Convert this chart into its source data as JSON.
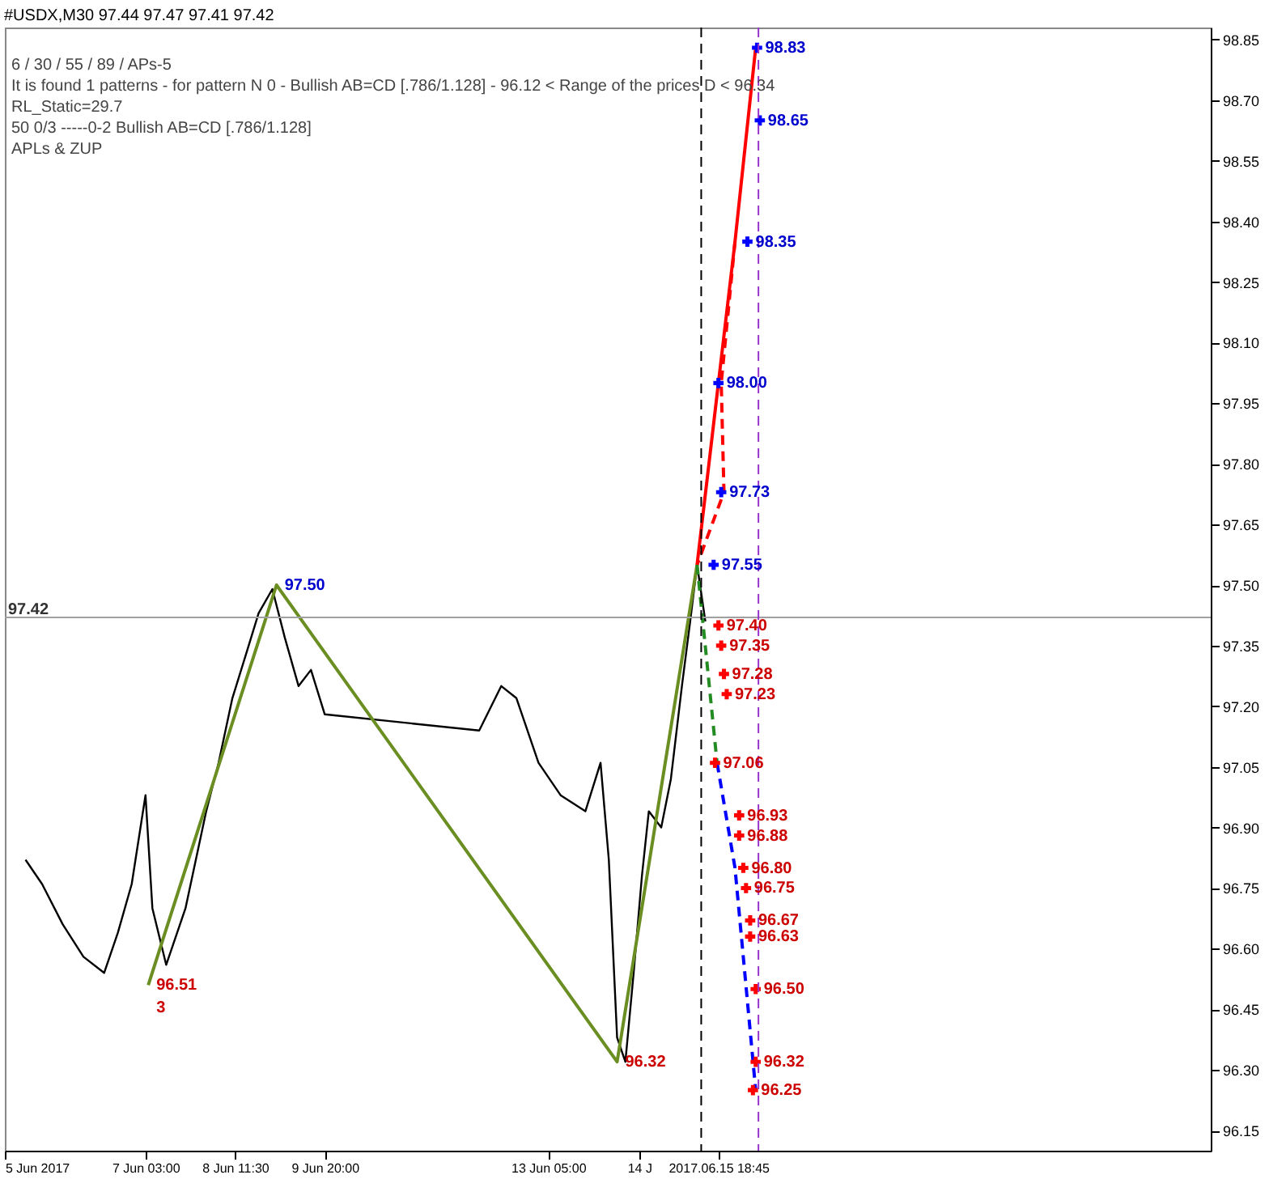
{
  "chart_data": {
    "type": "line",
    "title": "#USDX,M30  97.44 97.47 97.41 97.42",
    "xlim": [
      "2017-06-05T00:00",
      "2017-06-23T05:15"
    ],
    "ylim": [
      96.1,
      98.88
    ],
    "xticks": [
      {
        "value": "2017-06-05",
        "label": "5 Jun 2017"
      },
      {
        "value": "2017-06-07T03:00",
        "label": "7 Jun 03:00"
      },
      {
        "value": "2017-06-08T11:30",
        "label": "8 Jun 11:30"
      },
      {
        "value": "2017-06-09T20:00",
        "label": "9 Jun 20:00"
      },
      {
        "value": "2017-06-13T05:00",
        "label": "13 Jun 05:00"
      },
      {
        "value": "2017-06-14T14:00",
        "label": "14 J"
      },
      {
        "value": "2017-06-15T18:45",
        "label": "2017.06.15 18:45"
      }
    ],
    "yticks": [
      {
        "value": 98.85,
        "label": "98.85"
      },
      {
        "value": 98.7,
        "label": "98.70"
      },
      {
        "value": 98.55,
        "label": "98.55"
      },
      {
        "value": 98.4,
        "label": "98.40"
      },
      {
        "value": 98.25,
        "label": "98.25"
      },
      {
        "value": 98.1,
        "label": "98.10"
      },
      {
        "value": 97.95,
        "label": "97.95"
      },
      {
        "value": 97.8,
        "label": "97.80"
      },
      {
        "value": 97.65,
        "label": "97.65"
      },
      {
        "value": 97.5,
        "label": "97.50"
      },
      {
        "value": 97.35,
        "label": "97.35"
      },
      {
        "value": 97.2,
        "label": "97.20"
      },
      {
        "value": 97.05,
        "label": "97.05"
      },
      {
        "value": 96.9,
        "label": "96.90"
      },
      {
        "value": 96.75,
        "label": "96.75"
      },
      {
        "value": 96.6,
        "label": "96.60"
      },
      {
        "value": 96.45,
        "label": "96.45"
      },
      {
        "value": 96.3,
        "label": "96.30"
      },
      {
        "value": 96.15,
        "label": "96.15"
      }
    ],
    "grid": false,
    "series": [
      {
        "color": "#000000",
        "line_style": "solid",
        "x": [
          "2017-06-05T07:30",
          "2017-06-05T13:30",
          "2017-06-05T21:00",
          "2017-06-06T04:30",
          "2017-06-06T12:00",
          "2017-06-06T17:00",
          "2017-06-06T22:00",
          "2017-06-07T03:00",
          "2017-06-07T05:30",
          "2017-06-07T10:30",
          "2017-06-07T17:30",
          "2017-06-08T01:00",
          "2017-06-08T05:30",
          "2017-06-08T10:30",
          "2017-06-08T15:30",
          "2017-06-08T20:00",
          "2017-06-09T01:00",
          "2017-06-09T05:30",
          "2017-06-09T10:30",
          "2017-06-09T15:00",
          "2017-06-09T20:00",
          "2017-06-12T04:00",
          "2017-06-12T12:00",
          "2017-06-12T17:30",
          "2017-06-13T01:30",
          "2017-06-13T09:30",
          "2017-06-13T18:30",
          "2017-06-14T00:00",
          "2017-06-14T03:00",
          "2017-06-14T06:00",
          "2017-06-14T09:00",
          "2017-06-14T12:00",
          "2017-06-14T15:00",
          "2017-06-14T17:30",
          "2017-06-14T22:00",
          "2017-06-15T01:30",
          "2017-06-15T05:30",
          "2017-06-15T08:30",
          "2017-06-15T11:00",
          "2017-06-15T14:00"
        ],
        "values": [
          96.82,
          96.76,
          96.66,
          96.58,
          96.54,
          96.64,
          96.76,
          96.98,
          96.7,
          96.56,
          96.7,
          96.94,
          97.06,
          97.22,
          97.33,
          97.43,
          97.49,
          97.37,
          97.25,
          97.29,
          97.18,
          97.14,
          97.25,
          97.22,
          97.06,
          96.98,
          96.94,
          97.06,
          96.82,
          96.38,
          96.32,
          96.54,
          96.78,
          96.94,
          96.9,
          97.02,
          97.25,
          97.41,
          97.55,
          97.41
        ]
      },
      {
        "color": "#6b8e23",
        "line_style": "solid",
        "x": [
          "2017-06-07T04:00",
          "2017-06-09T02:30",
          "2017-06-14T06:00",
          "2017-06-15T11:00"
        ],
        "values": [
          96.51,
          97.5,
          96.32,
          97.55
        ]
      },
      {
        "color": "#ff0000",
        "line_style": "solid",
        "x": [
          "2017-06-15T11:00",
          "2017-06-16T00:45",
          "2017-06-16T08:15"
        ],
        "values": [
          97.55,
          98.35,
          98.83
        ]
      },
      {
        "color": "#ff0000",
        "line_style": "dashed",
        "x": [
          "2017-06-16T00:45",
          "2017-06-15T19:45",
          "2017-06-15T20:45",
          "2017-06-15T11:00"
        ],
        "values": [
          98.35,
          98.0,
          97.73,
          97.55
        ]
      },
      {
        "color": "#228b22",
        "line_style": "dashed",
        "x": [
          "2017-06-15T11:00",
          "2017-06-15T18:15"
        ],
        "values": [
          97.55,
          97.06
        ]
      },
      {
        "color": "#0000ff",
        "line_style": "dashed",
        "x": [
          "2017-06-15T18:15",
          "2017-06-16T00:45",
          "2017-06-16T08:15"
        ],
        "values": [
          97.06,
          96.8,
          96.25
        ]
      },
      {
        "type": "scatter",
        "color": "#0000ff",
        "x": [
          "2017-06-16T08:45",
          "2017-06-16T09:45",
          "2017-06-16T05:15",
          "2017-06-15T18:45",
          "2017-06-15T19:45",
          "2017-06-15T17:00"
        ],
        "values": [
          98.83,
          98.65,
          98.35,
          98.0,
          97.73,
          97.55
        ]
      },
      {
        "type": "scatter",
        "color": "#ff0000",
        "x": [
          "2017-06-15T18:45",
          "2017-06-15T19:45",
          "2017-06-15T20:45",
          "2017-06-15T21:45",
          "2017-06-15T17:30",
          "2017-06-16T02:15",
          "2017-06-16T02:15",
          "2017-06-16T03:45",
          "2017-06-16T04:45",
          "2017-06-16T06:15",
          "2017-06-16T06:15",
          "2017-06-16T08:15",
          "2017-06-16T08:15",
          "2017-06-16T07:15"
        ],
        "values": [
          97.4,
          97.35,
          97.28,
          97.23,
          97.06,
          96.93,
          96.88,
          96.8,
          96.75,
          96.67,
          96.63,
          96.5,
          96.32,
          96.25
        ]
      }
    ],
    "ref_lines": [
      {
        "axis": "y",
        "value": 97.42,
        "label": "97.42",
        "color": "#a0a0a0",
        "line_style": "solid"
      },
      {
        "axis": "x",
        "value": "2017-06-15T12:30",
        "color": "#000000",
        "line_style": "dashed"
      },
      {
        "axis": "x",
        "value": "2017-06-16T09:15",
        "color": "#9932cc",
        "line_style": "dashed"
      }
    ],
    "annotations": [
      "6 / 30 / 55 / 89 / APs-5",
      "It is found 1 patterns  -  for pattern N 0 - Bullish AB=CD [.786/1.128] - 96.12 < Range of the prices D < 96.34",
      "RL_Static=29.7",
      "50     0/3     -----0-2      Bullish AB=CD [.786/1.128]",
      "APLs & ZUP",
      {
        "text": "98.83",
        "x": "2017-06-16T08:45",
        "y": 98.83
      },
      {
        "text": "98.65",
        "x": "2017-06-16T09:45",
        "y": 98.65
      },
      {
        "text": "98.35",
        "x": "2017-06-16T05:15",
        "y": 98.35
      },
      {
        "text": "98.00",
        "x": "2017-06-15T18:45",
        "y": 98.0
      },
      {
        "text": "97.73",
        "x": "2017-06-15T19:45",
        "y": 97.73
      },
      {
        "text": "97.55",
        "x": "2017-06-15T17:00",
        "y": 97.55
      },
      {
        "text": "97.40",
        "x": "2017-06-15T18:45",
        "y": 97.4
      },
      {
        "text": "97.35",
        "x": "2017-06-15T19:45",
        "y": 97.35
      },
      {
        "text": "97.28",
        "x": "2017-06-15T20:45",
        "y": 97.28
      },
      {
        "text": "97.23",
        "x": "2017-06-15T21:45",
        "y": 97.23
      },
      {
        "text": "97.06",
        "x": "2017-06-15T17:30",
        "y": 97.06
      },
      {
        "text": "96.93",
        "x": "2017-06-16T02:15",
        "y": 96.93
      },
      {
        "text": "96.88",
        "x": "2017-06-16T02:15",
        "y": 96.88
      },
      {
        "text": "96.80",
        "x": "2017-06-16T03:45",
        "y": 96.8
      },
      {
        "text": "96.75",
        "x": "2017-06-16T04:45",
        "y": 96.75
      },
      {
        "text": "96.67",
        "x": "2017-06-16T06:15",
        "y": 96.67
      },
      {
        "text": "96.63",
        "x": "2017-06-16T06:15",
        "y": 96.63
      },
      {
        "text": "96.50",
        "x": "2017-06-16T08:15",
        "y": 96.5
      },
      {
        "text": "96.32",
        "x": "2017-06-16T08:15",
        "y": 96.32
      },
      {
        "text": "96.25",
        "x": "2017-06-16T07:15",
        "y": 96.25
      },
      {
        "text": "97.50",
        "x": "2017-06-09T02:30",
        "y": 97.5
      },
      {
        "text": "96.51",
        "x": "2017-06-07T04:00",
        "y": 96.51
      },
      {
        "text": "96.32",
        "x": "2017-06-14T06:00",
        "y": 96.32
      },
      {
        "text": "3",
        "x": "2017-06-07T04:00",
        "y": 96.51
      }
    ]
  }
}
